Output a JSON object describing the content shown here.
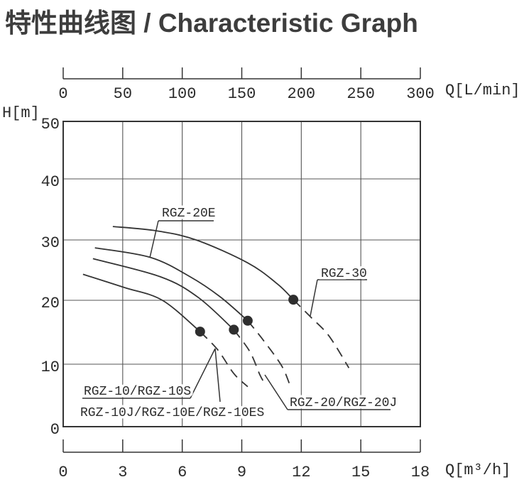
{
  "title": "特性曲线图 / Characteristic Graph",
  "colors": {
    "ink": "#343434",
    "grid": "#555555",
    "title_text": "#3d3d3d",
    "dot": "#2e2e2e",
    "background": "#ffffff"
  },
  "chart_data": {
    "type": "line",
    "title": "特性曲线图 / Characteristic Graph",
    "grid": true,
    "legend": "none (CAD-style callout labels on curves)",
    "top_axis": {
      "label": "Q[L/min]",
      "ticks": [
        0,
        50,
        100,
        150,
        200,
        250,
        300
      ],
      "range": [
        0,
        300
      ]
    },
    "bottom_axis": {
      "label": "Q[m³/h]",
      "ticks": [
        0,
        3,
        6,
        9,
        12,
        15,
        18
      ],
      "range": [
        0,
        18
      ]
    },
    "left_axis": {
      "label": "H[m]",
      "ticks": [
        50,
        40,
        30,
        20,
        10,
        0
      ],
      "range": [
        0,
        50
      ]
    },
    "series": [
      {
        "name": "RGZ-30",
        "solid": [
          [
            2.5,
            32.2
          ],
          [
            4.7,
            31.5
          ],
          [
            6.7,
            30.0
          ],
          [
            9.3,
            26.2
          ],
          [
            10.8,
            22.7
          ],
          [
            11.6,
            20.1
          ]
        ],
        "dashed": [
          [
            11.6,
            20.1
          ],
          [
            12.5,
            17.3
          ],
          [
            13.4,
            14.4
          ],
          [
            14.4,
            9.4
          ]
        ],
        "rated_point": [
          11.6,
          20.1
        ]
      },
      {
        "name": "RGZ-20E",
        "solid": [
          [
            1.6,
            28.7
          ],
          [
            4.4,
            27.1
          ],
          [
            6.4,
            23.9
          ],
          [
            7.9,
            20.6
          ],
          [
            9.3,
            16.8
          ]
        ],
        "dashed": [
          [
            9.3,
            16.8
          ],
          [
            10.1,
            13.7
          ],
          [
            11.0,
            9.8
          ],
          [
            11.4,
            6.9
          ]
        ],
        "rated_point": [
          9.3,
          16.8
        ]
      },
      {
        "name": "RGZ-20/RGZ-20J",
        "solid": [
          [
            1.5,
            26.9
          ],
          [
            4.9,
            23.9
          ],
          [
            6.8,
            20.5
          ],
          [
            8.6,
            15.4
          ]
        ],
        "dashed": [
          [
            8.6,
            15.4
          ],
          [
            9.4,
            12.0
          ],
          [
            9.9,
            8.4
          ],
          [
            10.1,
            7.2
          ]
        ],
        "rated_point": [
          8.6,
          15.4
        ]
      },
      {
        "name": "RGZ-10 family (RGZ-10/RGZ-10S/RGZ-10J/RGZ-10E/RGZ-10ES)",
        "solid": [
          [
            1.0,
            24.3
          ],
          [
            3.1,
            22.1
          ],
          [
            5.0,
            20.0
          ],
          [
            6.9,
            15.1
          ]
        ],
        "dashed": [
          [
            6.9,
            15.1
          ],
          [
            7.8,
            12.2
          ],
          [
            8.6,
            8.5
          ],
          [
            9.3,
            6.4
          ]
        ],
        "rated_point": [
          6.9,
          15.1
        ]
      }
    ],
    "annotations": [
      {
        "text": "RGZ-20E",
        "points_to": "RGZ-20E"
      },
      {
        "text": "RGZ-30",
        "points_to": "RGZ-30"
      },
      {
        "text": "RGZ-10/RGZ-10S",
        "points_to": "RGZ-10 family"
      },
      {
        "text": "RGZ-10J/RGZ-10E/RGZ-10ES",
        "points_to": "RGZ-10 family"
      },
      {
        "text": "RGZ-20/RGZ-20J",
        "points_to": "RGZ-20/RGZ-20J"
      }
    ]
  }
}
